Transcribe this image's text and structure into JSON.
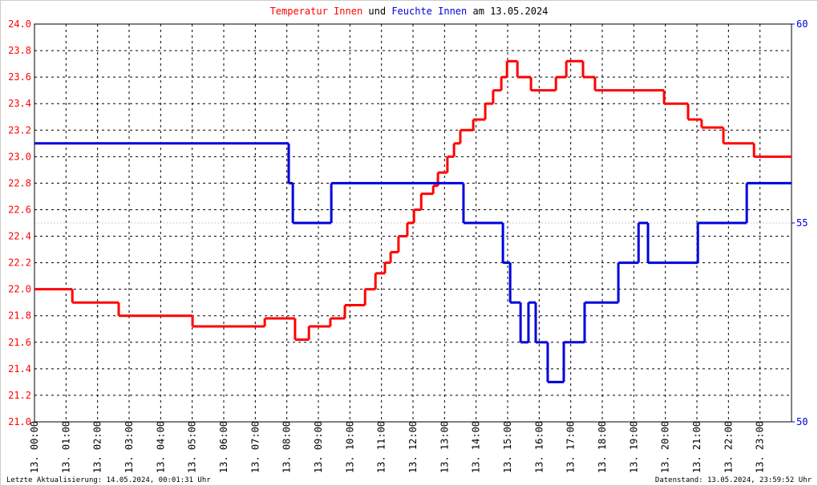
{
  "chart_data": {
    "type": "step",
    "title": [
      "Temperatur Innen",
      "und",
      "Feuchte Innen",
      "am 13.05.2024"
    ],
    "footer_left": "Letzte Aktualisierung: 14.05.2024, 00:01:31 Uhr",
    "footer_right": "Datenstand: 13.05.2024, 23:59:52 Uhr",
    "xlim": [
      0,
      24
    ],
    "xticks": [
      {
        "value": 0,
        "label": "13. 00:00"
      },
      {
        "value": 1,
        "label": "13. 01:00"
      },
      {
        "value": 2,
        "label": "13. 02:00"
      },
      {
        "value": 3,
        "label": "13. 03:00"
      },
      {
        "value": 4,
        "label": "13. 04:00"
      },
      {
        "value": 5,
        "label": "13. 05:00"
      },
      {
        "value": 6,
        "label": "13. 06:00"
      },
      {
        "value": 7,
        "label": "13. 07:00"
      },
      {
        "value": 8,
        "label": "13. 08:00"
      },
      {
        "value": 9,
        "label": "13. 09:00"
      },
      {
        "value": 10,
        "label": "13. 10:00"
      },
      {
        "value": 11,
        "label": "13. 11:00"
      },
      {
        "value": 12,
        "label": "13. 12:00"
      },
      {
        "value": 13,
        "label": "13. 13:00"
      },
      {
        "value": 14,
        "label": "13. 14:00"
      },
      {
        "value": 15,
        "label": "13. 15:00"
      },
      {
        "value": 16,
        "label": "13. 16:00"
      },
      {
        "value": 17,
        "label": "13. 17:00"
      },
      {
        "value": 18,
        "label": "13. 18:00"
      },
      {
        "value": 19,
        "label": "13. 19:00"
      },
      {
        "value": 20,
        "label": "13. 20:00"
      },
      {
        "value": 21,
        "label": "13. 21:00"
      },
      {
        "value": 22,
        "label": "13. 22:00"
      },
      {
        "value": 23,
        "label": "13. 23:00"
      }
    ],
    "ylim": [
      21.0,
      24.0
    ],
    "yticks": [
      {
        "value": 21,
        "label": "21.0"
      },
      21.2,
      21.4,
      21.6,
      21.8,
      {
        "value": 22,
        "label": "22.0"
      },
      22.2,
      22.4,
      22.6,
      22.8,
      {
        "value": 23,
        "label": "23.0"
      },
      23.2,
      23.4,
      23.6,
      23.8,
      {
        "value": 24,
        "label": "24.0"
      }
    ],
    "y2lim": [
      50,
      60
    ],
    "y2ticks": [
      50,
      55,
      60
    ],
    "grid": true,
    "series": [
      {
        "name": "Temperatur Innen",
        "color": "#ff0000",
        "axis": "y",
        "x": [
          0,
          1.2,
          2.67,
          5.01,
          7.3,
          8.26,
          8.7,
          9.38,
          9.84,
          10.48,
          10.81,
          11.11,
          11.29,
          11.54,
          11.82,
          12.03,
          12.26,
          12.64,
          12.79,
          13.09,
          13.3,
          13.5,
          13.91,
          14.29,
          14.54,
          14.8,
          14.98,
          15.31,
          15.74,
          16.53,
          16.86,
          17.39,
          17.77,
          19.96,
          20.72,
          21.15,
          21.84,
          22.81
        ],
        "values": [
          22.0,
          21.9,
          21.8,
          21.72,
          21.78,
          21.62,
          21.72,
          21.78,
          21.88,
          22.0,
          22.12,
          22.2,
          22.28,
          22.4,
          22.5,
          22.6,
          22.72,
          22.78,
          22.88,
          23.0,
          23.1,
          23.2,
          23.28,
          23.4,
          23.5,
          23.6,
          23.72,
          23.6,
          23.5,
          23.6,
          23.72,
          23.6,
          23.5,
          23.4,
          23.28,
          23.22,
          23.1,
          23.0
        ]
      },
      {
        "name": "Feuchte Innen",
        "color": "#0000dd",
        "axis": "y2",
        "x": [
          0,
          8.06,
          8.19,
          9.41,
          13.6,
          14.85,
          15.08,
          15.41,
          15.66,
          15.89,
          16.27,
          16.78,
          17.44,
          18.51,
          19.15,
          19.45,
          21.03,
          22.58
        ],
        "values": [
          57.0,
          56.0,
          55.0,
          56.0,
          55.0,
          54.0,
          53.0,
          52.0,
          53.0,
          52.0,
          51.0,
          52.0,
          53.0,
          54.0,
          55.0,
          54.0,
          55.0,
          56.0
        ]
      }
    ]
  }
}
